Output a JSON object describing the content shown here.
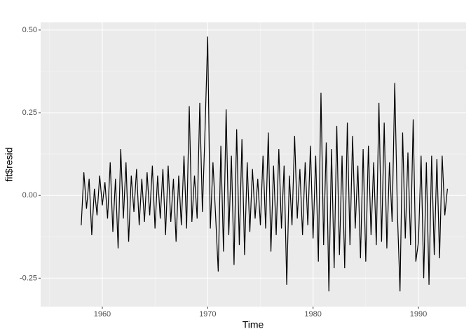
{
  "chart_data": {
    "type": "line",
    "x_label": "Time",
    "y_label": "fit$resid",
    "xlim": [
      1954.15,
      1994.52
    ],
    "ylim": [
      -0.336,
      0.523
    ],
    "xticks": [
      1960,
      1970,
      1980,
      1990
    ],
    "yticks": [
      {
        "value": 0.5,
        "label": "0.50"
      },
      {
        "value": 0.25,
        "label": "0.25"
      },
      {
        "value": 0,
        "label": "0.00"
      },
      {
        "value": -0.25,
        "label": "-0.25"
      }
    ],
    "grid": true,
    "color": "#000000",
    "x": [
      1958,
      1958.25,
      1958.5,
      1958.75,
      1959,
      1959.25,
      1959.5,
      1959.75,
      1960,
      1960.25,
      1960.5,
      1960.75,
      1961,
      1961.25,
      1961.5,
      1961.75,
      1962,
      1962.25,
      1962.5,
      1962.75,
      1963,
      1963.25,
      1963.5,
      1963.75,
      1964,
      1964.25,
      1964.5,
      1964.75,
      1965,
      1965.25,
      1965.5,
      1965.75,
      1966,
      1966.25,
      1966.5,
      1966.75,
      1967,
      1967.25,
      1967.5,
      1967.75,
      1968,
      1968.25,
      1968.5,
      1968.75,
      1969,
      1969.25,
      1969.5,
      1969.75,
      1970,
      1970.25,
      1970.5,
      1970.75,
      1971,
      1971.25,
      1971.5,
      1971.75,
      1972,
      1972.25,
      1972.5,
      1972.75,
      1973,
      1973.25,
      1973.5,
      1973.75,
      1974,
      1974.25,
      1974.5,
      1974.75,
      1975,
      1975.25,
      1975.5,
      1975.75,
      1976,
      1976.25,
      1976.5,
      1976.75,
      1977,
      1977.25,
      1977.5,
      1977.75,
      1978,
      1978.25,
      1978.5,
      1978.75,
      1979,
      1979.25,
      1979.5,
      1979.75,
      1980,
      1980.25,
      1980.5,
      1980.75,
      1981,
      1981.25,
      1981.5,
      1981.75,
      1982,
      1982.25,
      1982.5,
      1982.75,
      1983,
      1983.25,
      1983.5,
      1983.75,
      1984,
      1984.25,
      1984.5,
      1984.75,
      1985,
      1985.25,
      1985.5,
      1985.75,
      1986,
      1986.25,
      1986.5,
      1986.75,
      1987,
      1987.25,
      1987.5,
      1987.75,
      1988,
      1988.25,
      1988.5,
      1988.75,
      1989,
      1989.25,
      1989.5,
      1989.75,
      1990,
      1990.25,
      1990.5,
      1990.75,
      1991,
      1991.25,
      1991.5,
      1991.75,
      1992,
      1992.25,
      1992.5,
      1992.75
    ],
    "values": [
      -0.09,
      0.07,
      -0.04,
      0.05,
      -0.12,
      0.02,
      -0.06,
      0.06,
      -0.03,
      0.04,
      -0.07,
      0.1,
      -0.11,
      0.05,
      -0.16,
      0.14,
      -0.07,
      0.1,
      -0.14,
      0.06,
      -0.05,
      0.08,
      -0.09,
      0.05,
      -0.08,
      0.07,
      -0.06,
      0.09,
      -0.1,
      0.06,
      -0.07,
      0.08,
      -0.12,
      0.09,
      -0.08,
      0.05,
      -0.14,
      0.06,
      -0.09,
      0.12,
      -0.1,
      0.27,
      -0.08,
      0.06,
      -0.07,
      0.28,
      -0.05,
      0.2,
      0.48,
      -0.1,
      0.1,
      -0.06,
      -0.23,
      0.15,
      -0.17,
      0.26,
      -0.12,
      0.12,
      -0.21,
      0.2,
      -0.15,
      0.17,
      -0.18,
      0.1,
      -0.11,
      0.08,
      -0.07,
      0.05,
      -0.09,
      0.12,
      -0.1,
      0.19,
      -0.17,
      0.09,
      -0.12,
      0.14,
      -0.1,
      0.09,
      -0.27,
      0.06,
      -0.09,
      0.18,
      -0.07,
      0.08,
      -0.12,
      0.1,
      -0.09,
      0.15,
      -0.13,
      0.12,
      -0.2,
      0.31,
      -0.15,
      0.16,
      -0.29,
      0.14,
      -0.22,
      0.21,
      -0.18,
      0.12,
      -0.22,
      0.22,
      -0.15,
      0.18,
      -0.1,
      0.09,
      -0.19,
      0.14,
      -0.2,
      0.15,
      -0.12,
      0.1,
      -0.15,
      0.28,
      -0.14,
      0.22,
      -0.16,
      0.1,
      -0.08,
      0.34,
      -0.05,
      -0.29,
      0.19,
      -0.13,
      0.13,
      -0.15,
      0.23,
      -0.2,
      -0.14,
      0.12,
      -0.25,
      0.1,
      -0.27,
      0.12,
      -0.18,
      0.11,
      -0.19,
      0.12,
      -0.06,
      0.02
    ]
  }
}
